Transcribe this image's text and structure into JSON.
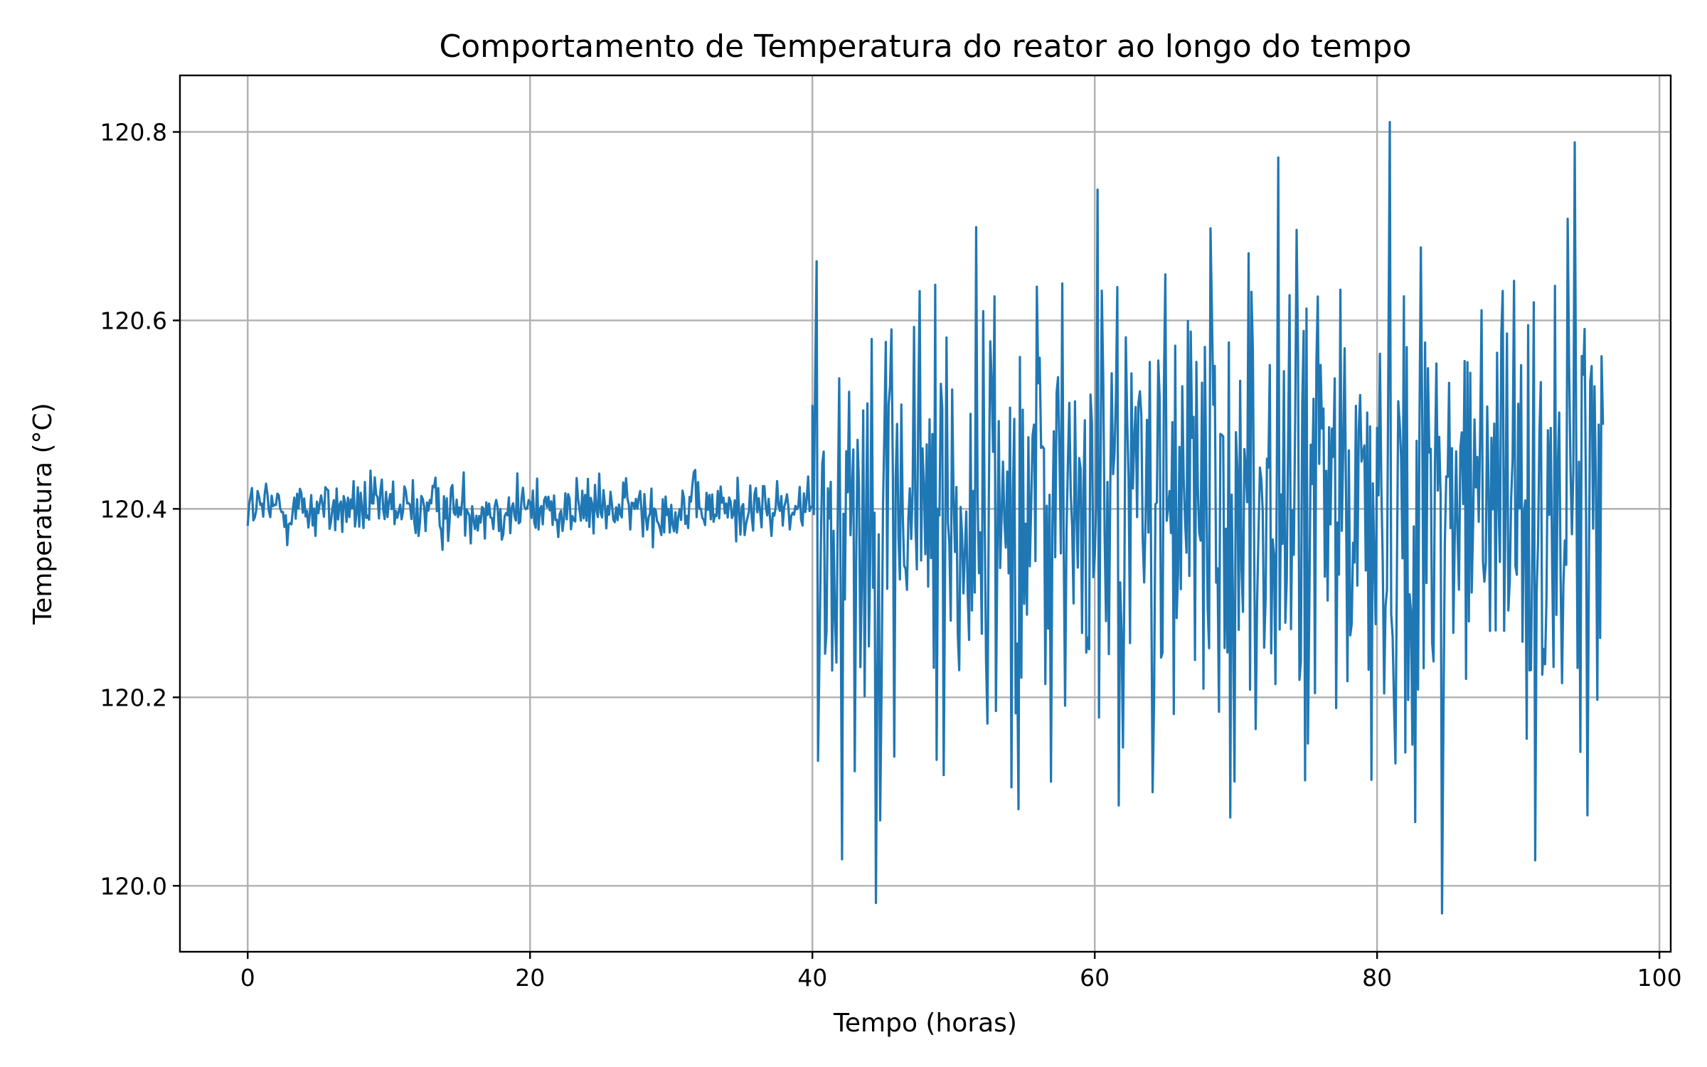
{
  "chart_data": {
    "type": "line",
    "title": "Comportamento de Temperatura do reator ao longo do tempo",
    "xlabel": "Tempo (horas)",
    "ylabel": "Temperatura (°C)",
    "xlim": [
      -4.8,
      100.8
    ],
    "ylim": [
      119.93,
      120.86
    ],
    "xticks": [
      0,
      20,
      40,
      60,
      80,
      100
    ],
    "yticks": [
      120.0,
      120.2,
      120.4,
      120.6,
      120.8
    ],
    "xtick_labels": [
      "0",
      "20",
      "40",
      "60",
      "80",
      "100"
    ],
    "ytick_labels": [
      "120.0",
      "120.2",
      "120.4",
      "120.6",
      "120.8"
    ],
    "grid": true,
    "series": [
      {
        "color": "#1f77b4",
        "regimes": [
          {
            "x_start": 0,
            "x_end": 40,
            "mean": 120.4,
            "min": 120.35,
            "max": 120.46
          },
          {
            "x_start": 40,
            "x_end": 96,
            "mean": 120.4,
            "min": 119.97,
            "max": 120.82
          }
        ],
        "sampling_interval": 0.1
      }
    ]
  }
}
